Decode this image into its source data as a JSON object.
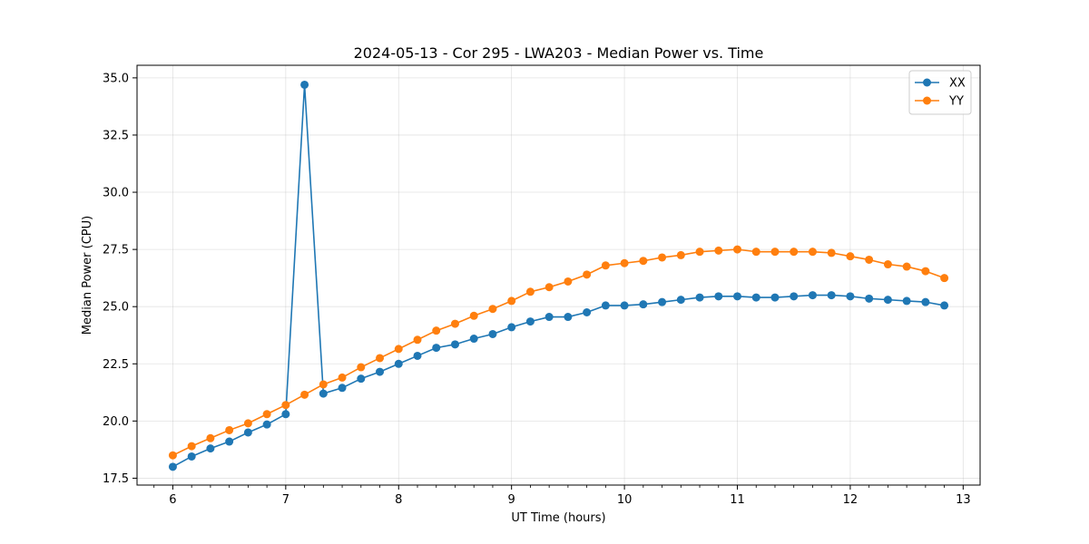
{
  "chart_data": {
    "type": "line",
    "title": "2024-05-13 - Cor 295 - LWA203 - Median Power vs. Time",
    "xlabel": "UT Time (hours)",
    "ylabel": "Median Power (CPU)",
    "xlim": [
      5.683,
      13.15
    ],
    "ylim": [
      17.2,
      35.55
    ],
    "xticks": [
      6,
      7,
      8,
      9,
      10,
      11,
      12,
      13
    ],
    "xtick_labels": [
      "6",
      "7",
      "8",
      "9",
      "10",
      "11",
      "12",
      "13"
    ],
    "yticks": [
      17.5,
      20.0,
      22.5,
      25.0,
      27.5,
      30.0,
      32.5,
      35.0
    ],
    "ytick_labels": [
      "17.5",
      "20.0",
      "22.5",
      "25.0",
      "27.5",
      "30.0",
      "32.5",
      "35.0"
    ],
    "grid": true,
    "legend_position": "top-right",
    "x": [
      6.0,
      6.1667,
      6.3333,
      6.5,
      6.6667,
      6.8333,
      7.0,
      7.1667,
      7.3333,
      7.5,
      7.6667,
      7.8333,
      8.0,
      8.1667,
      8.3333,
      8.5,
      8.6667,
      8.8333,
      9.0,
      9.1667,
      9.3333,
      9.5,
      9.6667,
      9.8333,
      10.0,
      10.1667,
      10.3333,
      10.5,
      10.6667,
      10.8333,
      11.0,
      11.1667,
      11.3333,
      11.5,
      11.6667,
      11.8333,
      12.0,
      12.1667,
      12.3333,
      12.5,
      12.6667,
      12.8333
    ],
    "series": [
      {
        "name": "XX",
        "color": "#1f77b4",
        "values": [
          18.0,
          18.45,
          18.8,
          19.1,
          19.5,
          19.85,
          20.3,
          34.7,
          21.2,
          21.45,
          21.85,
          22.15,
          22.5,
          22.85,
          23.2,
          23.35,
          23.6,
          23.8,
          24.1,
          24.35,
          24.55,
          24.55,
          24.75,
          25.05,
          25.05,
          25.1,
          25.2,
          25.3,
          25.4,
          25.45,
          25.45,
          25.4,
          25.4,
          25.45,
          25.5,
          25.5,
          25.45,
          25.35,
          25.3,
          25.25,
          25.2,
          25.05
        ]
      },
      {
        "name": "YY",
        "color": "#ff7f0e",
        "values": [
          18.5,
          18.9,
          19.25,
          19.6,
          19.9,
          20.3,
          20.7,
          21.15,
          21.6,
          21.9,
          22.35,
          22.75,
          23.15,
          23.55,
          23.95,
          24.25,
          24.6,
          24.9,
          25.25,
          25.65,
          25.85,
          26.1,
          26.4,
          26.8,
          26.9,
          27.0,
          27.15,
          27.25,
          27.4,
          27.45,
          27.5,
          27.4,
          27.4,
          27.4,
          27.4,
          27.35,
          27.2,
          27.05,
          26.85,
          26.75,
          26.55,
          26.25
        ]
      }
    ]
  }
}
